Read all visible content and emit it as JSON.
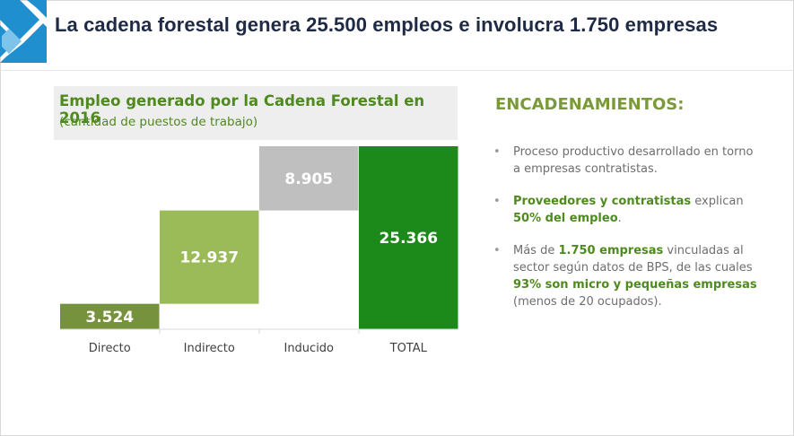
{
  "header": {
    "title": "La cadena forestal genera 25.500 empleos e involucra 1.750 empresas"
  },
  "chart_data": {
    "type": "bar",
    "subtype": "waterfall",
    "title": "Empleo generado por la Cadena Forestal en 2016",
    "subtitle": "(cantidad de puestos de trabajo)",
    "categories": [
      "Directo",
      "Indirecto",
      "Inducido",
      "TOTAL"
    ],
    "values": [
      3524,
      12937,
      8905,
      25366
    ],
    "value_labels": [
      "3.524",
      "12.937",
      "8.905",
      "25.366"
    ],
    "bar_colors": [
      "#76923c",
      "#9bbb59",
      "#bfbfbf",
      "#1b8a1b"
    ],
    "ylim": [
      0,
      25366
    ],
    "grid": false,
    "legend": "none"
  },
  "right_panel": {
    "heading": "ENCADENAMIENTOS:",
    "bullets": [
      {
        "segments": [
          {
            "text": "Proceso productivo desarrollado en torno a empresas contratistas.",
            "bold": false
          }
        ]
      },
      {
        "segments": [
          {
            "text": "Proveedores y contratistas",
            "bold": true
          },
          {
            "text": " explican ",
            "bold": false
          },
          {
            "text": "50% del empleo",
            "bold": true
          },
          {
            "text": ".",
            "bold": false
          }
        ]
      },
      {
        "segments": [
          {
            "text": "Más de ",
            "bold": false
          },
          {
            "text": "1.750 empresas",
            "bold": true
          },
          {
            "text": " vinculadas al sector según datos de BPS, de las cuales ",
            "bold": false
          },
          {
            "text": "93% son micro y pequeñas empresas",
            "bold": true
          },
          {
            "text": " (menos de 20 ocupados).",
            "bold": false
          }
        ]
      }
    ]
  },
  "colors": {
    "title": "#1f2a44",
    "accent_green": "#4e8a1d",
    "heading_green": "#7a9a3a",
    "logo_blue": "#1f8fd0"
  }
}
